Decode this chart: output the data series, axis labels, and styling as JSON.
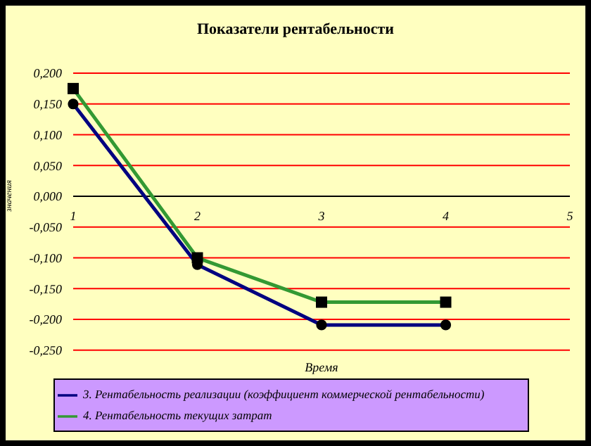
{
  "chart_data": {
    "type": "line",
    "title": "Показатели рентабельности",
    "xlabel": "Время",
    "ylabel": "значения",
    "categories": [
      "1",
      "2",
      "3",
      "4",
      "5"
    ],
    "series": [
      {
        "name": "3. Рентабельность реализации (коэффициент коммерческой рентабельности)",
        "color": "#000080",
        "marker": "circle",
        "values": [
          0.15,
          -0.111,
          -0.209,
          -0.209,
          null
        ]
      },
      {
        "name": "4. Рентабельность текущих затрат",
        "color": "#339933",
        "marker": "square",
        "values": [
          0.175,
          -0.1,
          -0.172,
          -0.172,
          null
        ]
      }
    ],
    "ylim": [
      -0.25,
      0.2
    ],
    "yticks": [
      {
        "value": -0.25,
        "label": "-0,250"
      },
      {
        "value": -0.2,
        "label": "-0,200"
      },
      {
        "value": -0.15,
        "label": "-0,150"
      },
      {
        "value": -0.1,
        "label": "-0,100"
      },
      {
        "value": -0.05,
        "label": "-0,050"
      },
      {
        "value": 0,
        "label": "0,000"
      },
      {
        "value": 0.05,
        "label": "0,050"
      },
      {
        "value": 0.1,
        "label": "0,100"
      },
      {
        "value": 0.15,
        "label": "0,150"
      },
      {
        "value": 0.2,
        "label": "0,200"
      }
    ],
    "grid": "y",
    "legend": "bottom"
  }
}
